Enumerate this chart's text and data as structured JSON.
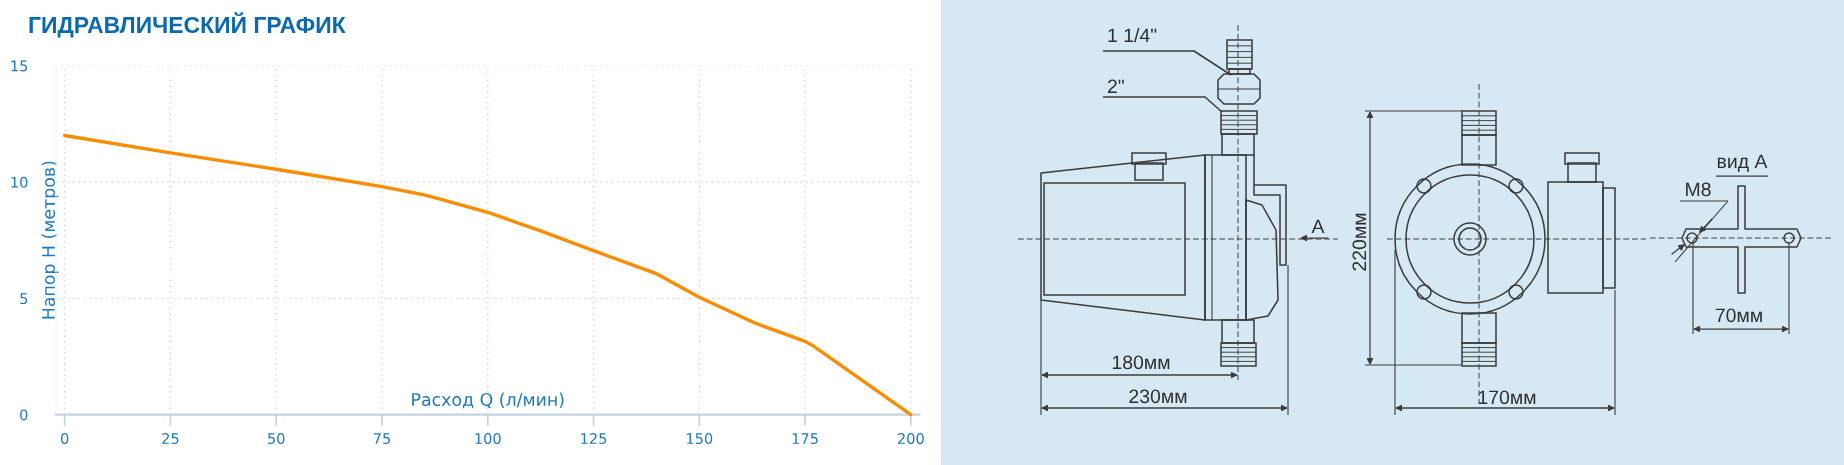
{
  "chart_data": [
    {
      "type": "line",
      "title": "ГИДРАВЛИЧЕСКИЙ ГРАФИК",
      "xlabel": "Расход Q (л/мин)",
      "ylabel": "Напор H (метров)",
      "x": [
        0,
        25,
        50,
        75,
        85,
        90,
        100,
        112.5,
        125,
        140,
        150,
        163,
        175,
        177,
        200
      ],
      "series": [
        {
          "color": "#fb8c00",
          "values": [
            12.0,
            11.25,
            10.55,
            9.8,
            9.45,
            9.2,
            8.7,
            7.9,
            7.05,
            6.05,
            5.05,
            3.95,
            3.15,
            2.95,
            0
          ]
        }
      ],
      "xlim": [
        -2,
        202
      ],
      "ylim": [
        0,
        15
      ],
      "xticks": [
        0,
        25,
        50,
        75,
        100,
        125,
        150,
        175,
        200
      ],
      "yticks": [
        0,
        5,
        10,
        15
      ],
      "grid": true,
      "line_style": "solid"
    },
    {
      "type": "other",
      "annotations": [
        "1 1/4\"",
        "2\"",
        "А",
        "180мм",
        "230мм",
        "220мм",
        "170мм",
        "вид А",
        "M8",
        "70мм"
      ]
    }
  ]
}
